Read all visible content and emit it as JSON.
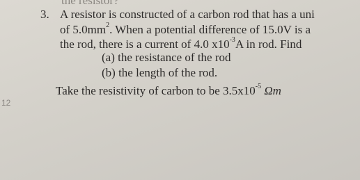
{
  "document": {
    "header_fragment": "the resistor?",
    "question": {
      "number": "3.",
      "lines": [
        [
          {
            "text": "A resistor is constructed of a carbon rod that has a uni"
          }
        ],
        [
          {
            "text": "of 5.0mm"
          },
          {
            "sup": "2"
          },
          {
            "text": ".  When a potential difference of 15.0V is a"
          }
        ],
        [
          {
            "text": "the rod, there is a current of 4.0 x10"
          },
          {
            "sup": "-3"
          },
          {
            "text": "A in  rod.  Find"
          }
        ]
      ],
      "parts": [
        "(a) the resistance of the rod",
        "(b) the length of the rod."
      ],
      "note": [
        {
          "text": "Take the resistivity of carbon to be 3.5x10"
        },
        {
          "sup": "-5"
        },
        {
          "text": " Ωm",
          "italic": true
        }
      ]
    },
    "margin_mark": "12"
  }
}
